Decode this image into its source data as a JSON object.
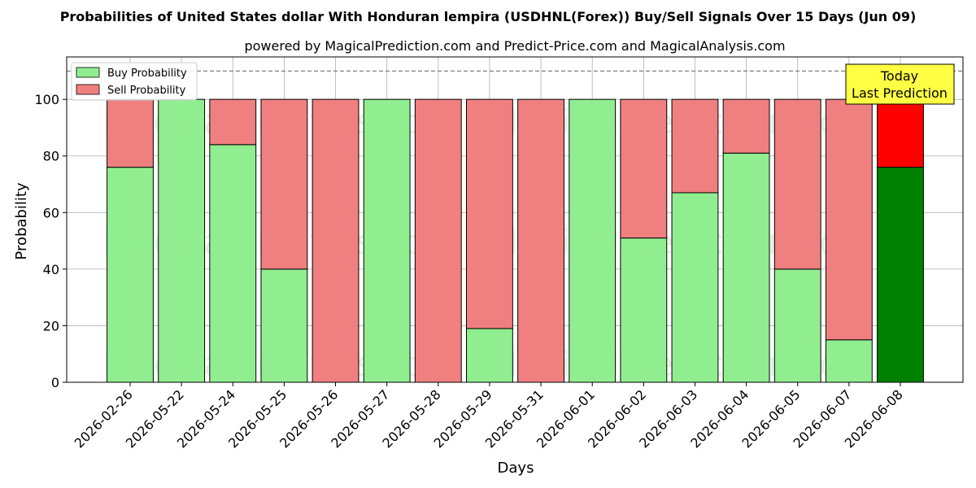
{
  "chart_data": {
    "type": "bar",
    "stacked": true,
    "title": "Probabilities of United States dollar With Honduran lempira (USDHNL(Forex)) Buy/Sell Signals Over 15 Days (Jun 09)",
    "subtitle": "powered by MagicalPrediction.com and Predict-Price.com and MagicalAnalysis.com",
    "xlabel": "Days",
    "ylabel": "Probability",
    "ylim": [
      0,
      115
    ],
    "yticks": [
      0,
      20,
      40,
      60,
      80,
      100
    ],
    "grid": true,
    "reference_line": 110,
    "legend_position": "top-left",
    "categories": [
      "2026-02-26",
      "2026-05-22",
      "2026-05-24",
      "2026-05-25",
      "2026-05-26",
      "2026-05-27",
      "2026-05-28",
      "2026-05-29",
      "2026-05-31",
      "2026-06-01",
      "2026-06-02",
      "2026-06-03",
      "2026-06-04",
      "2026-06-05",
      "2026-06-07",
      "2026-06-08"
    ],
    "series": [
      {
        "name": "Buy Probability",
        "color": "#90ee90",
        "values": [
          76,
          100,
          84,
          40,
          0,
          100,
          0,
          19,
          0,
          100,
          51,
          67,
          81,
          40,
          15,
          76
        ]
      },
      {
        "name": "Sell Probability",
        "color": "#f08080",
        "values": [
          24,
          0,
          16,
          60,
          100,
          0,
          100,
          81,
          100,
          0,
          49,
          33,
          19,
          60,
          85,
          24
        ]
      }
    ],
    "highlight": {
      "index": 15,
      "buy_color": "#008000",
      "sell_color": "#ff0000"
    },
    "annotation": {
      "line1": "Today",
      "line2": "Last Prediction",
      "bg": "#ffff44"
    },
    "watermarks": [
      "MagicalAnalysis.com",
      "MagicalPrediction.com"
    ]
  }
}
